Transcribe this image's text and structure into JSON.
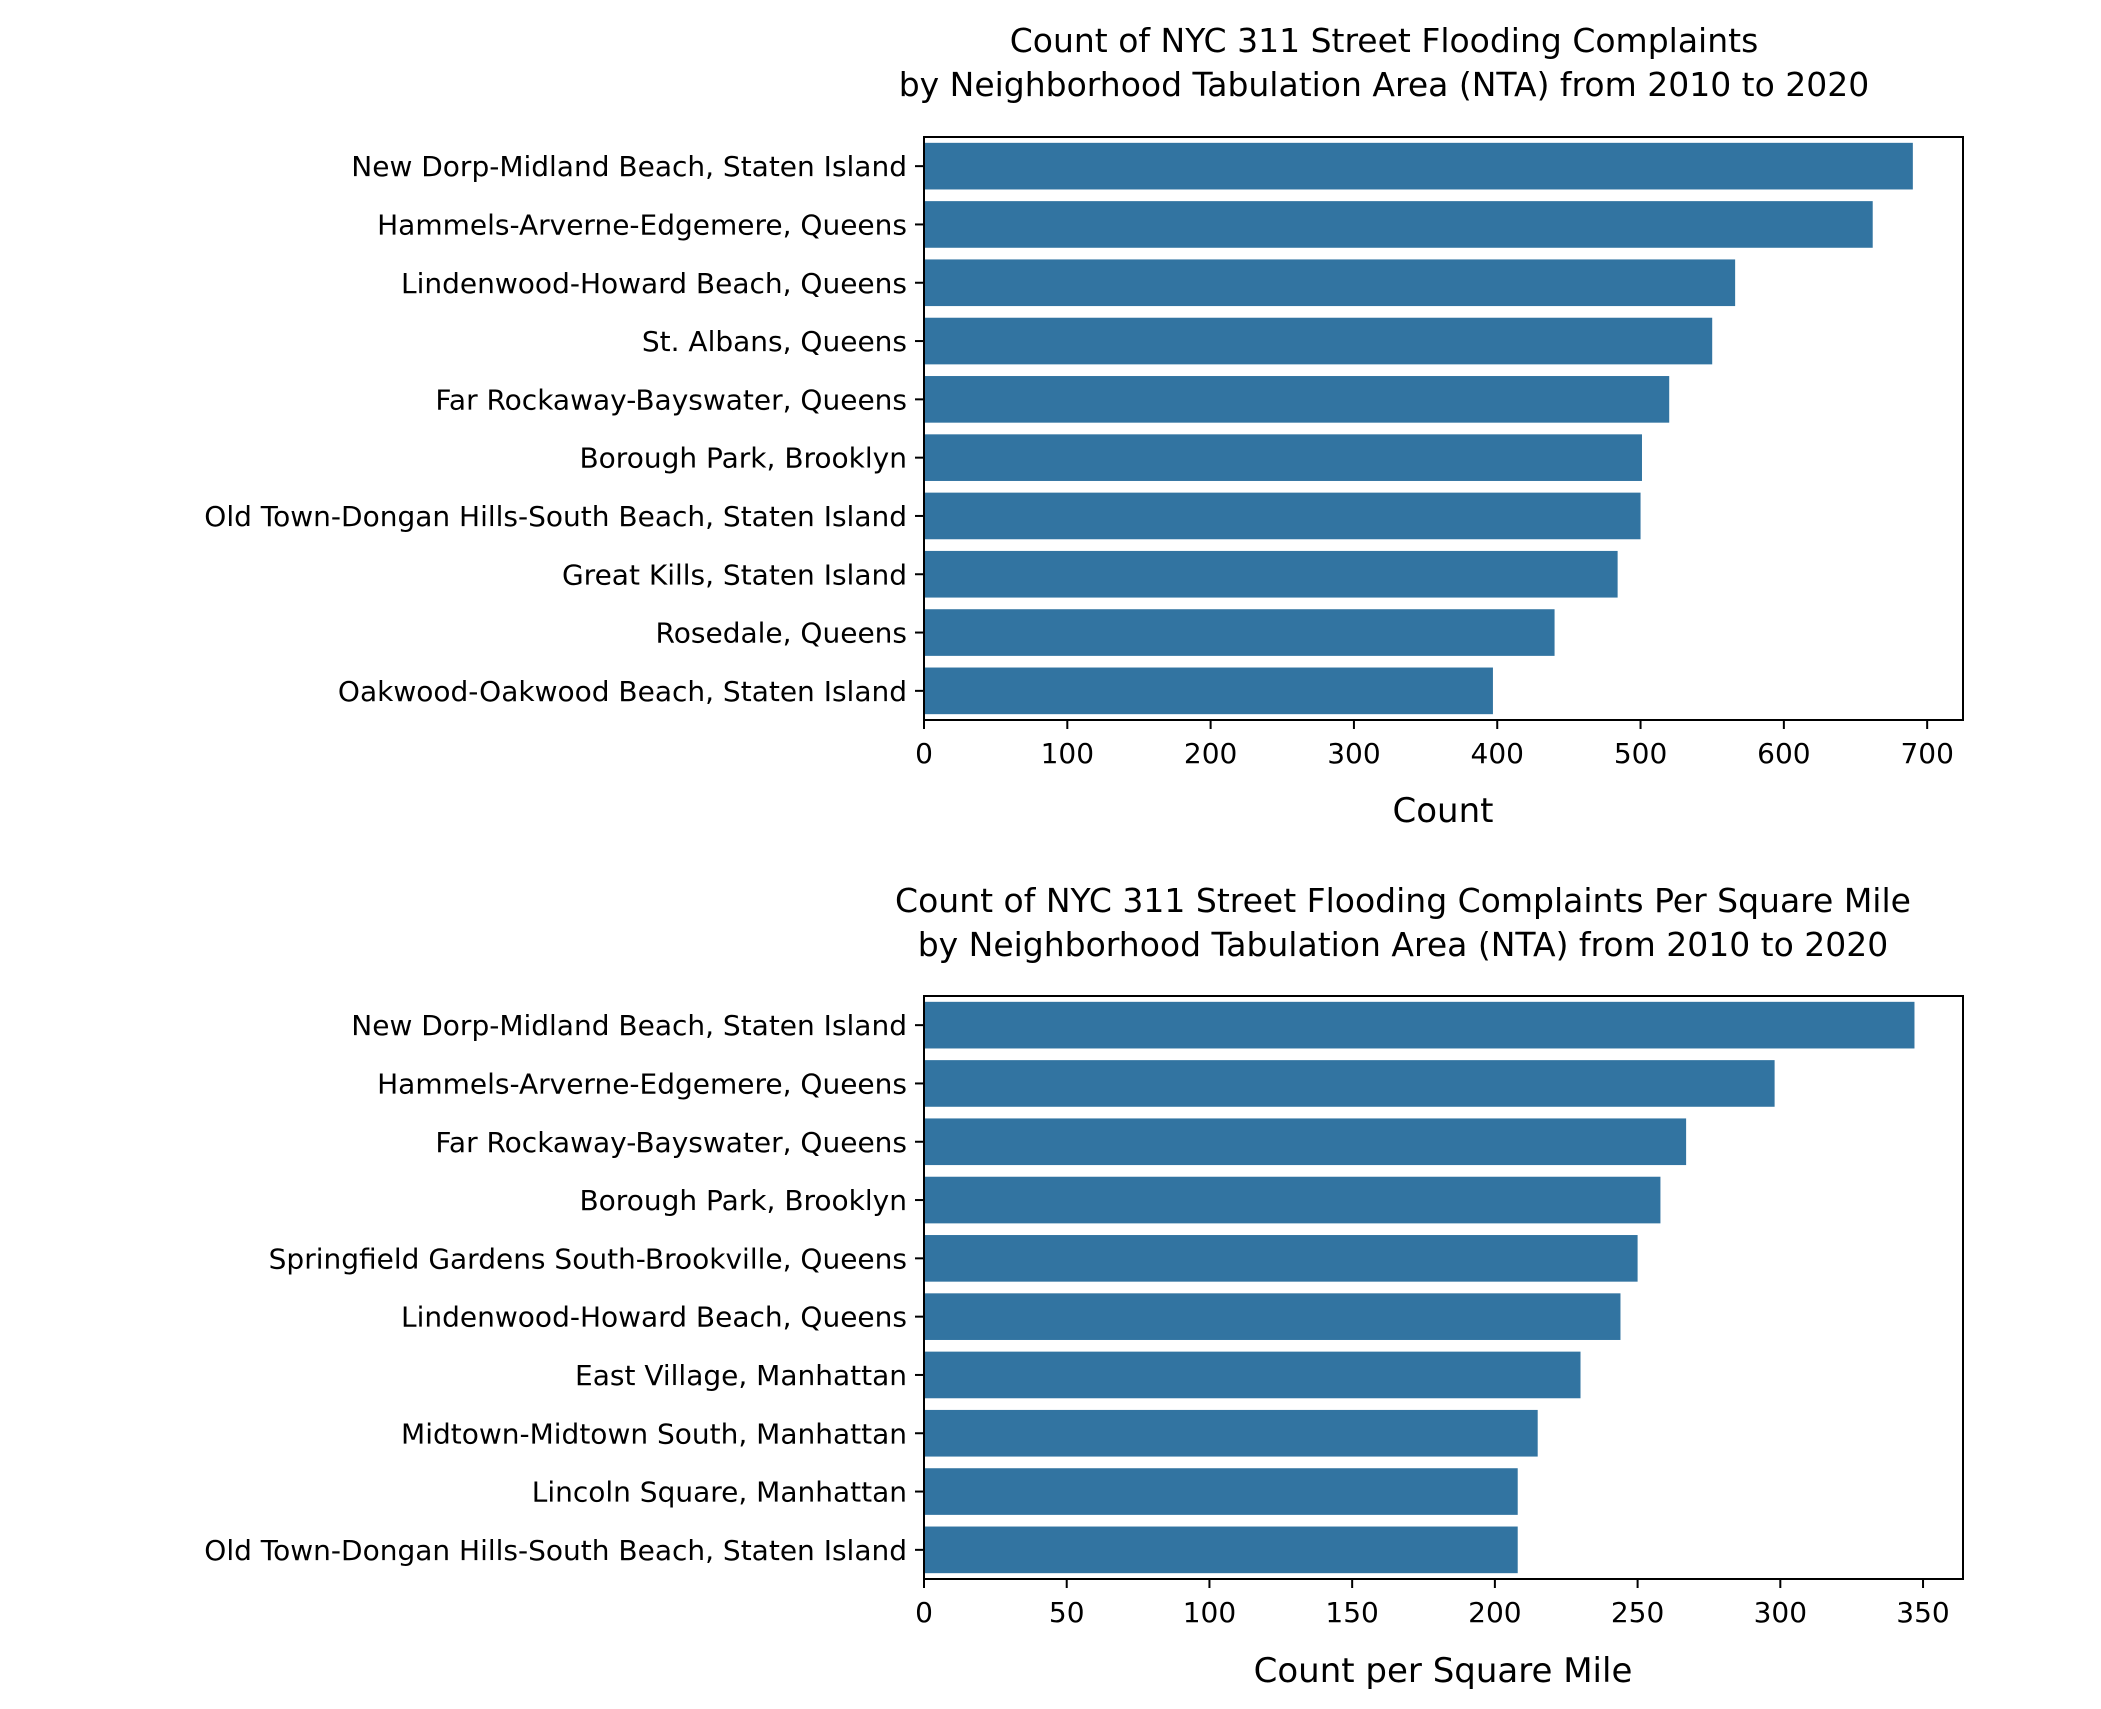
{
  "chart_data": [
    {
      "type": "bar",
      "orientation": "horizontal",
      "title": [
        "Count of NYC 311 Street Flooding Complaints",
        "by Neighborhood Tabulation Area (NTA) from 2010 to 2020"
      ],
      "xlabel": "Count",
      "ylabel": "",
      "xlim": [
        0,
        725
      ],
      "xticks": [
        0,
        100,
        200,
        300,
        400,
        500,
        600,
        700
      ],
      "grid": false,
      "color": "#3274a1",
      "categories": [
        "New Dorp-Midland Beach, Staten Island",
        "Hammels-Arverne-Edgemere, Queens",
        "Lindenwood-Howard Beach, Queens",
        "St. Albans, Queens",
        "Far Rockaway-Bayswater, Queens",
        "Borough Park, Brooklyn",
        "Old Town-Dongan Hills-South Beach, Staten Island",
        "Great Kills, Staten Island",
        "Rosedale, Queens",
        "Oakwood-Oakwood Beach, Staten Island"
      ],
      "values": [
        690,
        662,
        566,
        550,
        520,
        501,
        500,
        484,
        440,
        397
      ]
    },
    {
      "type": "bar",
      "orientation": "horizontal",
      "title": [
        "Count of NYC 311 Street Flooding Complaints Per Square Mile",
        "by Neighborhood Tabulation Area (NTA) from 2010 to 2020"
      ],
      "xlabel": "Count per Square Mile",
      "ylabel": "",
      "xlim": [
        0,
        364
      ],
      "xticks": [
        0,
        50,
        100,
        150,
        200,
        250,
        300,
        350
      ],
      "grid": false,
      "color": "#3274a1",
      "categories": [
        "New Dorp-Midland Beach, Staten Island",
        "Hammels-Arverne-Edgemere, Queens",
        "Far Rockaway-Bayswater, Queens",
        "Borough Park, Brooklyn",
        "Springfield Gardens South-Brookville, Queens",
        "Lindenwood-Howard Beach, Queens",
        "East Village, Manhattan",
        "Midtown-Midtown South, Manhattan",
        "Lincoln Square, Manhattan",
        "Old Town-Dongan Hills-South Beach, Staten Island"
      ],
      "values": [
        347,
        298,
        267,
        258,
        250,
        244,
        230,
        215,
        208,
        208
      ]
    }
  ]
}
